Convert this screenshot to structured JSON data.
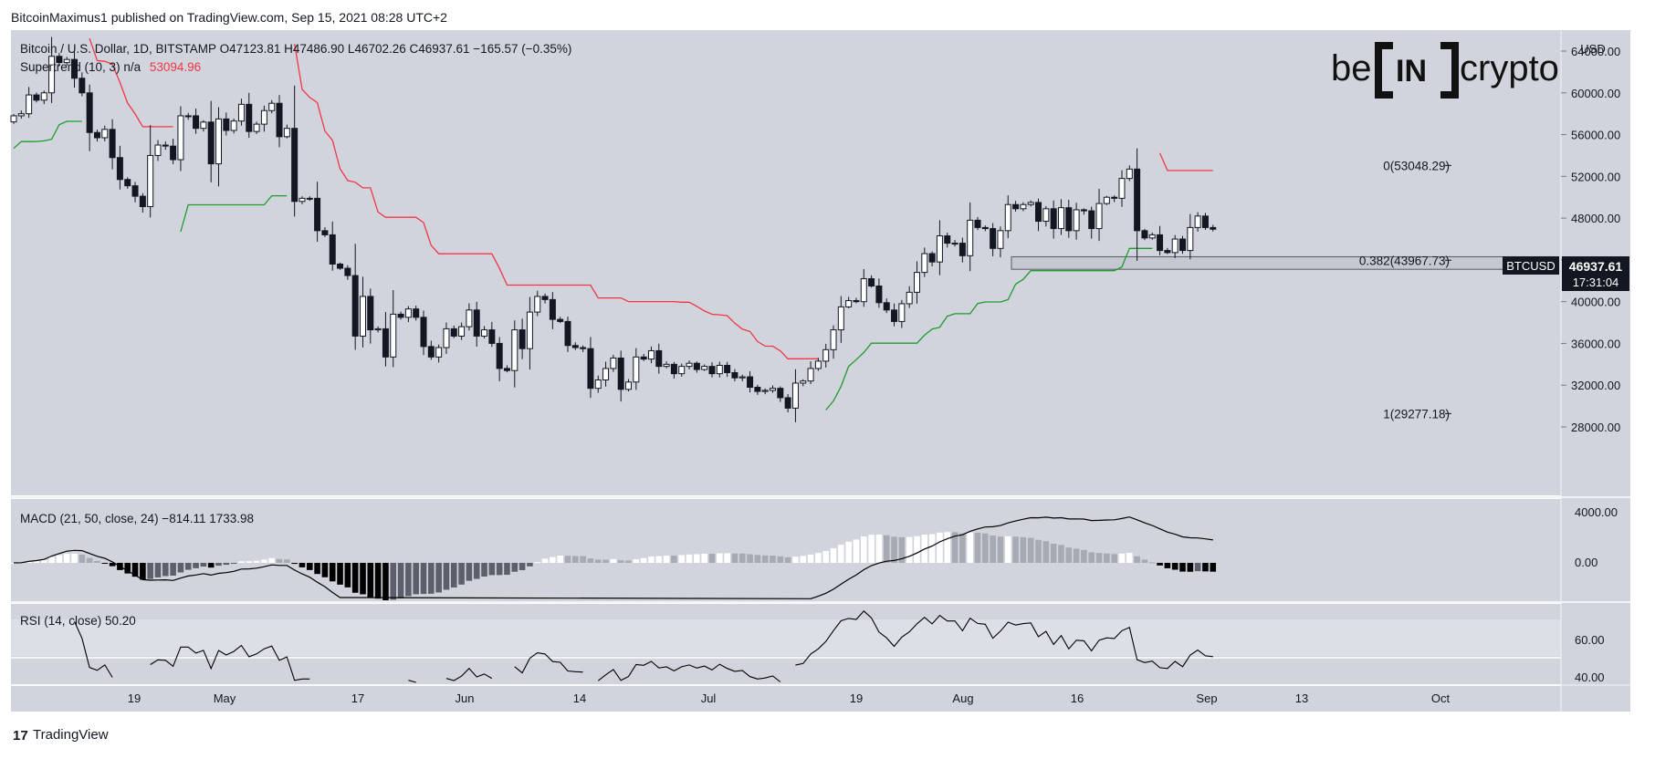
{
  "header": {
    "published": "BitcoinMaximus1 published on TradingView.com, Sep 15, 2021 08:28 UTC+2"
  },
  "footer": {
    "brand": "TradingView"
  },
  "watermark": {
    "text": "be[IN]crypto"
  },
  "colors": {
    "panel_bg": "#d1d4dc",
    "bull_body": "#ffffff",
    "bear_body": "#131722",
    "st_up": "#1e9c2c",
    "st_down": "#f23645",
    "macd_line": "#000000",
    "rsi_line": "#000000"
  },
  "main": {
    "legend_line1": "Bitcoin / U.S. Dollar, 1D, BITSTAMP  O47123.81  H47486.90  L46702.26  C46937.61  −165.57 (−0.35%)",
    "legend_line2_label": "Supertrend (10, 3)  n/a",
    "legend_line2_value": "53094.96",
    "currency": "USD",
    "y_ticks": [
      "64000.00",
      "60000.00",
      "56000.00",
      "52000.00",
      "48000.00",
      "44000.00",
      "40000.00",
      "36000.00",
      "32000.00",
      "28000.00"
    ],
    "ticker": "BTCUSD",
    "last_price": "46937.61",
    "countdown": "17:31:04",
    "fib": [
      {
        "label": "0(53048.29)",
        "value": 53048.29
      },
      {
        "label": "0.382(43967.73)",
        "value": 43967.73
      },
      {
        "label": "1(29277.18)",
        "value": 29277.18
      }
    ],
    "support_zone": [
      43100,
      44300
    ]
  },
  "macd": {
    "legend": "MACD (21, 50, close, 24)  −814.11  1733.98",
    "y_ticks": [
      "4000.00",
      "0.00"
    ]
  },
  "rsi": {
    "legend": "RSI (14, close)  50.20",
    "y_ticks": [
      "60.00",
      "40.00"
    ]
  },
  "x_axis": {
    "labels": [
      "19",
      "May",
      "17",
      "Jun",
      "14",
      "Jul",
      "19",
      "Aug",
      "16",
      "Sep",
      "13",
      "Oct"
    ]
  },
  "chart_data": {
    "type": "candlestick",
    "title": "Bitcoin / U.S. Dollar, 1D, BITSTAMP",
    "ylabel": "USD",
    "ylim": [
      28000,
      66000
    ],
    "start_date": "2021-04-08",
    "daily_closes": [
      57800,
      58000,
      59800,
      59300,
      60000,
      63500,
      62900,
      63200,
      61400,
      60000,
      56200,
      55700,
      56500,
      53800,
      51700,
      51100,
      50100,
      49100,
      54000,
      55000,
      54900,
      53600,
      57800,
      57800,
      56600,
      57200,
      53200,
      57500,
      56400,
      57300,
      58900,
      56300,
      57000,
      58300,
      59000,
      55800,
      56600,
      49600,
      49900,
      49900,
      46800,
      46400,
      43600,
      43200,
      42500,
      36700,
      40500,
      37300,
      37400,
      34700,
      38800,
      38500,
      39300,
      38500,
      35700,
      34700,
      35600,
      37400,
      36700,
      37600,
      39200,
      36700,
      37300,
      36000,
      33600,
      33400,
      37300,
      35500,
      39000,
      40500,
      40200,
      38300,
      38100,
      35800,
      35600,
      35500,
      31700,
      32500,
      33600,
      34600,
      31600,
      32300,
      34700,
      34500,
      35300,
      33800,
      34000,
      33100,
      33800,
      34100,
      33500,
      33800,
      33100,
      33900,
      33200,
      32700,
      32800,
      31800,
      31400,
      31500,
      31700,
      30800,
      29800,
      32200,
      32400,
      33600,
      34300,
      35400,
      37300,
      39500,
      40100,
      40000,
      42200,
      41500,
      39900,
      39200,
      38100,
      39800,
      40900,
      42800,
      44600,
      43800,
      46300,
      45600,
      45600,
      44400,
      47800,
      47100,
      47000,
      45100,
      46800,
      49300,
      48900,
      49300,
      49500,
      47700,
      48900,
      47000,
      49000,
      46800,
      48800,
      48700,
      47000,
      49400,
      50000,
      49900,
      51800,
      52700,
      46800,
      46100,
      46400,
      44900,
      44700,
      46000,
      44900,
      47100,
      48200,
      47100,
      46937.61
    ]
  }
}
